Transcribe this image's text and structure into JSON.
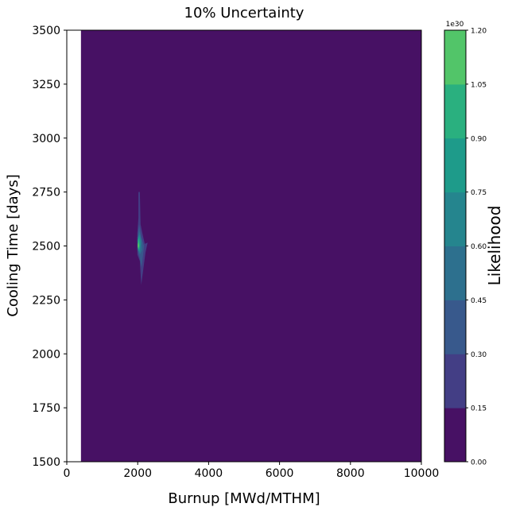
{
  "chart_data": {
    "type": "contour",
    "title": "10% Uncertainty",
    "xlabel": "Burnup [MWd/MTHM]",
    "ylabel": "Cooling Time [days]",
    "xlim": [
      0,
      10000
    ],
    "ylim": [
      1500,
      3500
    ],
    "x_ticks": [
      "0",
      "2000",
      "4000",
      "6000",
      "8000",
      "10000"
    ],
    "y_ticks": [
      "1500",
      "1750",
      "2000",
      "2250",
      "2500",
      "2750",
      "3000",
      "3250",
      "3500"
    ],
    "data_extent": {
      "x": [
        400,
        10000
      ],
      "y": [
        1500,
        3500
      ]
    },
    "colorbar": {
      "label": "Likelihood",
      "multiplier": "1e30",
      "levels": [
        "0.00",
        "0.15",
        "0.30",
        "0.45",
        "0.60",
        "0.75",
        "0.90",
        "1.05",
        "1.20"
      ],
      "colors": [
        "#471164",
        "#433e85",
        "#38598c",
        "#2d708e",
        "#25858e",
        "#1e9b8a",
        "#2ab07f",
        "#52c569",
        "#86d549",
        "#c2df23"
      ]
    },
    "peak": {
      "burnup": 2000,
      "cooling_time": 2500,
      "likelihood_e30": 1.1
    },
    "regions": [
      {
        "level": 1,
        "points": [
          [
            2020,
            2750
          ],
          [
            2060,
            2750
          ],
          [
            2080,
            2600
          ],
          [
            2130,
            2560
          ],
          [
            2200,
            2510
          ],
          [
            2280,
            2515
          ],
          [
            2220,
            2470
          ],
          [
            2100,
            2320
          ],
          [
            2060,
            2430
          ],
          [
            1990,
            2460
          ],
          [
            1990,
            2560
          ],
          [
            2020,
            2630
          ]
        ]
      },
      {
        "level": 2,
        "points": [
          [
            2040,
            2600
          ],
          [
            2100,
            2540
          ],
          [
            2180,
            2500
          ],
          [
            2110,
            2400
          ],
          [
            2050,
            2450
          ],
          [
            1990,
            2480
          ],
          [
            1990,
            2540
          ]
        ]
      },
      {
        "level": 3,
        "points": [
          [
            2050,
            2570
          ],
          [
            2110,
            2525
          ],
          [
            2120,
            2480
          ],
          [
            2060,
            2460
          ],
          [
            1995,
            2490
          ],
          [
            2000,
            2530
          ]
        ]
      },
      {
        "level": 4,
        "points": [
          [
            2050,
            2555
          ],
          [
            2095,
            2515
          ],
          [
            2060,
            2470
          ],
          [
            2000,
            2495
          ],
          [
            2005,
            2530
          ]
        ]
      },
      {
        "level": 5,
        "points": [
          [
            2040,
            2545
          ],
          [
            2070,
            2505
          ],
          [
            2040,
            2475
          ],
          [
            2005,
            2500
          ],
          [
            2010,
            2530
          ]
        ]
      },
      {
        "level": 6,
        "points": [
          [
            2030,
            2535
          ],
          [
            2050,
            2500
          ],
          [
            2025,
            2480
          ],
          [
            2008,
            2503
          ],
          [
            2012,
            2525
          ]
        ]
      },
      {
        "level": 7,
        "points": [
          [
            2022,
            2525
          ],
          [
            2035,
            2500
          ],
          [
            2015,
            2485
          ],
          [
            2008,
            2505
          ]
        ]
      },
      {
        "level": 8,
        "points": [
          [
            2015,
            2515
          ],
          [
            2024,
            2500
          ],
          [
            2010,
            2490
          ],
          [
            2007,
            2505
          ]
        ]
      }
    ]
  }
}
